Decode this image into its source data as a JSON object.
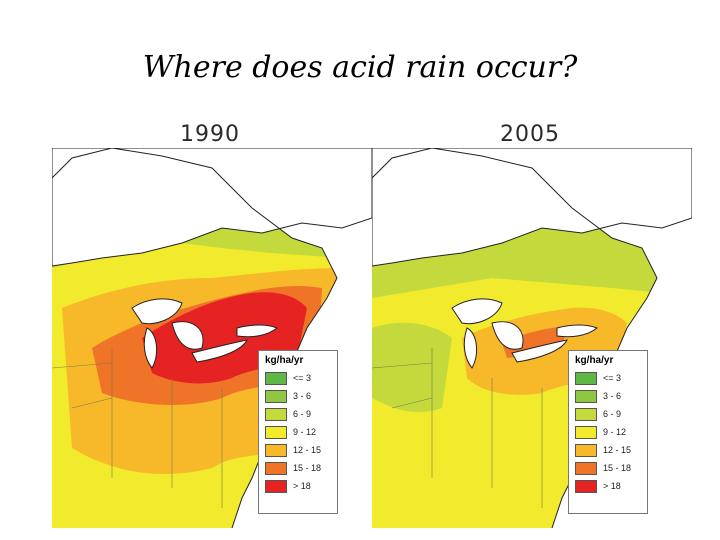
{
  "title": "Where does acid rain occur?",
  "legend": {
    "unit": "kg/ha/yr",
    "classes": [
      {
        "label": "<= 3",
        "color": "#5fb845"
      },
      {
        "label": "3 - 6",
        "color": "#8fc742"
      },
      {
        "label": "6 - 9",
        "color": "#c3d93c"
      },
      {
        "label": "9 - 12",
        "color": "#f2ea2c"
      },
      {
        "label": "12 - 15",
        "color": "#f7b82a"
      },
      {
        "label": "15 - 18",
        "color": "#ef7428"
      },
      {
        "label": "> 18",
        "color": "#e52323"
      }
    ]
  },
  "maps": [
    {
      "year": "1990"
    },
    {
      "year": "2005"
    }
  ]
}
